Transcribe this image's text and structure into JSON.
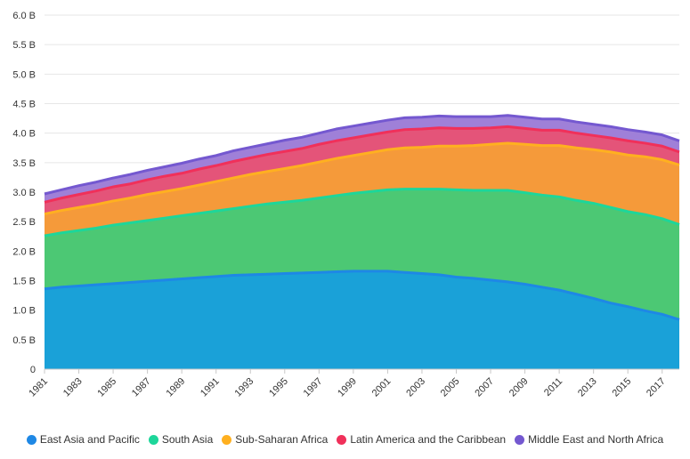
{
  "chart_data": {
    "type": "area",
    "stacked": true,
    "x": [
      1981,
      1982,
      1983,
      1984,
      1985,
      1986,
      1987,
      1988,
      1989,
      1990,
      1991,
      1992,
      1993,
      1994,
      1995,
      1996,
      1997,
      1998,
      1999,
      2000,
      2001,
      2002,
      2003,
      2004,
      2005,
      2006,
      2007,
      2008,
      2009,
      2010,
      2011,
      2012,
      2013,
      2014,
      2015,
      2016,
      2017,
      2018
    ],
    "x_tick_labels": [
      "1981",
      "1983",
      "1985",
      "1987",
      "1989",
      "1991",
      "1993",
      "1995",
      "1997",
      "1999",
      "2001",
      "2003",
      "2005",
      "2007",
      "2009",
      "2011",
      "2013",
      "2015",
      "2017"
    ],
    "y_tick_labels": [
      "0",
      "0.5 B",
      "1.0 B",
      "1.5 B",
      "2.0 B",
      "2.5 B",
      "3.0 B",
      "3.5 B",
      "4.0 B",
      "4.5 B",
      "5.0 B",
      "5.5 B",
      "6.0 B"
    ],
    "ylim": [
      0,
      6.0
    ],
    "y_unit": "billions",
    "grid": true,
    "legend_position": "bottom",
    "series": [
      {
        "name": "East Asia and Pacific",
        "color": "#1aa1d8",
        "line_color": "#1e88e5",
        "values": [
          1.36,
          1.39,
          1.41,
          1.43,
          1.45,
          1.47,
          1.49,
          1.51,
          1.53,
          1.55,
          1.57,
          1.59,
          1.6,
          1.61,
          1.62,
          1.63,
          1.64,
          1.65,
          1.66,
          1.66,
          1.66,
          1.64,
          1.62,
          1.6,
          1.56,
          1.54,
          1.51,
          1.48,
          1.44,
          1.39,
          1.34,
          1.27,
          1.2,
          1.12,
          1.06,
          0.99,
          0.93,
          0.84
        ]
      },
      {
        "name": "South Asia",
        "color": "#4cc874",
        "line_color": "#1dd69a",
        "values": [
          0.9,
          0.92,
          0.94,
          0.96,
          0.99,
          1.01,
          1.03,
          1.05,
          1.07,
          1.09,
          1.11,
          1.13,
          1.16,
          1.19,
          1.21,
          1.23,
          1.26,
          1.29,
          1.32,
          1.35,
          1.38,
          1.41,
          1.43,
          1.45,
          1.48,
          1.49,
          1.52,
          1.55,
          1.55,
          1.56,
          1.58,
          1.59,
          1.61,
          1.62,
          1.61,
          1.63,
          1.62,
          1.61
        ]
      },
      {
        "name": "Sub-Saharan Africa",
        "color": "#f59a3a",
        "line_color": "#ffb020",
        "values": [
          0.37,
          0.38,
          0.39,
          0.4,
          0.41,
          0.42,
          0.44,
          0.45,
          0.46,
          0.48,
          0.5,
          0.52,
          0.54,
          0.55,
          0.57,
          0.59,
          0.61,
          0.63,
          0.64,
          0.66,
          0.68,
          0.7,
          0.71,
          0.73,
          0.74,
          0.76,
          0.78,
          0.8,
          0.82,
          0.84,
          0.87,
          0.89,
          0.91,
          0.94,
          0.96,
          0.98,
          1.0,
          1.01
        ]
      },
      {
        "name": "Latin America and the Caribbean",
        "color": "#e45479",
        "line_color": "#f0305a",
        "values": [
          0.2,
          0.21,
          0.22,
          0.23,
          0.24,
          0.24,
          0.25,
          0.26,
          0.26,
          0.27,
          0.27,
          0.28,
          0.28,
          0.29,
          0.29,
          0.29,
          0.3,
          0.3,
          0.3,
          0.3,
          0.3,
          0.31,
          0.31,
          0.31,
          0.3,
          0.29,
          0.28,
          0.28,
          0.27,
          0.26,
          0.26,
          0.25,
          0.24,
          0.24,
          0.24,
          0.23,
          0.23,
          0.22
        ]
      },
      {
        "name": "Middle East and North Africa",
        "color": "#9f80d8",
        "line_color": "#7458d0",
        "values": [
          0.14,
          0.14,
          0.15,
          0.15,
          0.15,
          0.16,
          0.16,
          0.16,
          0.17,
          0.17,
          0.17,
          0.18,
          0.18,
          0.18,
          0.19,
          0.19,
          0.19,
          0.2,
          0.2,
          0.2,
          0.2,
          0.2,
          0.2,
          0.2,
          0.2,
          0.2,
          0.19,
          0.19,
          0.19,
          0.19,
          0.19,
          0.19,
          0.19,
          0.19,
          0.19,
          0.19,
          0.19,
          0.19
        ]
      }
    ]
  }
}
